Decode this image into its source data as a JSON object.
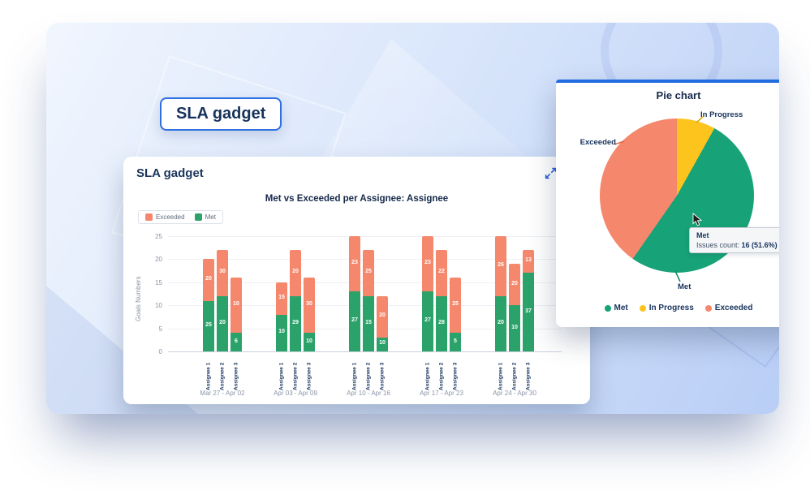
{
  "badge": {
    "label": "SLA gadget"
  },
  "bar_card": {
    "title": "SLA gadget",
    "icons": [
      "collapse-diagonal-icon",
      "fullscreen-icon"
    ]
  },
  "pie_card": {
    "title": "Pie chart",
    "tooltip": {
      "title": "Met",
      "label": "Issues count:",
      "value": "16 (51.6%)"
    }
  },
  "chart_data": [
    {
      "type": "bar",
      "title": "Met vs Exceeded per Assignee: Assignee",
      "ylabel": "Goals Numbers",
      "ylim": [
        0,
        25
      ],
      "yticks": [
        0,
        5,
        10,
        15,
        20,
        25
      ],
      "legend": [
        "Exceeded",
        "Met"
      ],
      "colors": {
        "met": "#2aa26a",
        "exceeded": "#f5876c"
      },
      "groups": [
        {
          "label": "Mar 27 - Apr 02",
          "bars": [
            {
              "name": "Assignee 1",
              "met": {
                "height": 11,
                "label": "25"
              },
              "exceeded": {
                "height": 9,
                "label": "20"
              }
            },
            {
              "name": "Assignee 2",
              "met": {
                "height": 12,
                "label": "20"
              },
              "exceeded": {
                "height": 10,
                "label": "30"
              }
            },
            {
              "name": "Assignee 3",
              "met": {
                "height": 4,
                "label": "6"
              },
              "exceeded": {
                "height": 12,
                "label": "10"
              }
            }
          ]
        },
        {
          "label": "Apr 03 - Apr 09",
          "bars": [
            {
              "name": "Assignee 1",
              "met": {
                "height": 8,
                "label": "10"
              },
              "exceeded": {
                "height": 7,
                "label": "15"
              }
            },
            {
              "name": "Assignee 2",
              "met": {
                "height": 12,
                "label": "29"
              },
              "exceeded": {
                "height": 10,
                "label": "20"
              }
            },
            {
              "name": "Assignee 3",
              "met": {
                "height": 4,
                "label": "10"
              },
              "exceeded": {
                "height": 12,
                "label": "30"
              }
            }
          ]
        },
        {
          "label": "Apr 10 - Apr 16",
          "bars": [
            {
              "name": "Assignee 1",
              "met": {
                "height": 13,
                "label": "27"
              },
              "exceeded": {
                "height": 12,
                "label": "23"
              }
            },
            {
              "name": "Assignee 2",
              "met": {
                "height": 12,
                "label": "15"
              },
              "exceeded": {
                "height": 10,
                "label": "25"
              }
            },
            {
              "name": "Assignee 3",
              "met": {
                "height": 3,
                "label": "10"
              },
              "exceeded": {
                "height": 9,
                "label": "20"
              }
            }
          ]
        },
        {
          "label": "Apr 17 - Apr 23",
          "bars": [
            {
              "name": "Assignee 1",
              "met": {
                "height": 13,
                "label": "27"
              },
              "exceeded": {
                "height": 12,
                "label": "23"
              }
            },
            {
              "name": "Assignee 2",
              "met": {
                "height": 12,
                "label": "28"
              },
              "exceeded": {
                "height": 10,
                "label": "22"
              }
            },
            {
              "name": "Assignee 3",
              "met": {
                "height": 4,
                "label": "5"
              },
              "exceeded": {
                "height": 12,
                "label": "25"
              }
            }
          ]
        },
        {
          "label": "Apr 24 - Apr 30",
          "bars": [
            {
              "name": "Assignee 1",
              "met": {
                "height": 12,
                "label": "20"
              },
              "exceeded": {
                "height": 13,
                "label": "26"
              }
            },
            {
              "name": "Assignee 2",
              "met": {
                "height": 10,
                "label": "10"
              },
              "exceeded": {
                "height": 9,
                "label": "20"
              }
            },
            {
              "name": "Assignee 3",
              "met": {
                "height": 17,
                "label": "37"
              },
              "exceeded": {
                "height": 5,
                "label": "13"
              }
            }
          ]
        }
      ]
    },
    {
      "type": "pie",
      "title": "Pie chart",
      "slices": [
        {
          "label": "Met",
          "color": "#17a277",
          "percent": 51.6,
          "issues_count": 16
        },
        {
          "label": "In Progress",
          "color": "#fcc41d",
          "percent": 8.1
        },
        {
          "label": "Exceeded",
          "color": "#f5876c",
          "percent": 40.3
        }
      ],
      "draw_order": [
        1,
        0,
        2
      ],
      "legend": [
        "Met",
        "In Progress",
        "Exceeded"
      ],
      "legend_position": "bottom",
      "tooltip": {
        "title": "Met",
        "label": "Issues count:",
        "value": "16 (51.6%)"
      }
    }
  ]
}
